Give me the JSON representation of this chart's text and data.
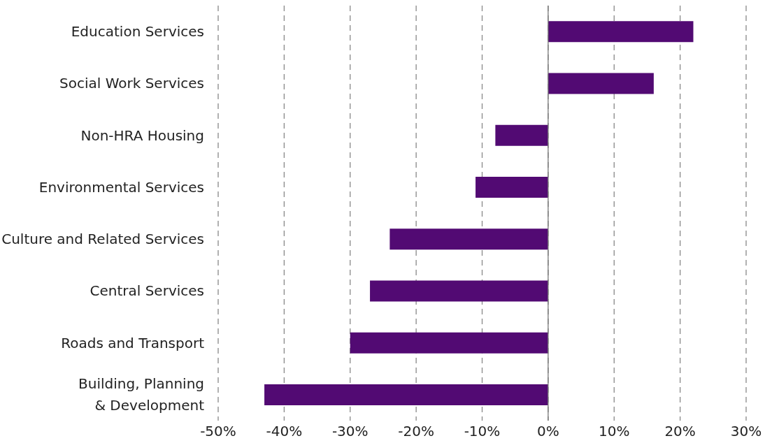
{
  "chart_data": {
    "type": "bar",
    "orientation": "horizontal",
    "categories": [
      "Education Services",
      "Social Work Services",
      "Non-HRA Housing",
      "Environmental Services",
      "Culture and Related Services",
      "Central Services",
      "Roads and Transport",
      "Building, Planning\n& Development"
    ],
    "values": [
      22,
      16,
      -8,
      -11,
      -24,
      -27,
      -30,
      -43
    ],
    "color": "#520a73",
    "xlim": [
      -50,
      30
    ],
    "xticks": [
      {
        "value": -50,
        "label": "-50%"
      },
      {
        "value": -40,
        "label": "-40%"
      },
      {
        "value": -30,
        "label": "-30%"
      },
      {
        "value": -20,
        "label": "-20%"
      },
      {
        "value": -10,
        "label": "-10%"
      },
      {
        "value": 0,
        "label": "0%"
      },
      {
        "value": 10,
        "label": "10%"
      },
      {
        "value": 20,
        "label": "20%"
      },
      {
        "value": 30,
        "label": "30%"
      }
    ],
    "grid": "x",
    "ref_lines": [
      {
        "axis": "x",
        "value": 0
      }
    ]
  }
}
